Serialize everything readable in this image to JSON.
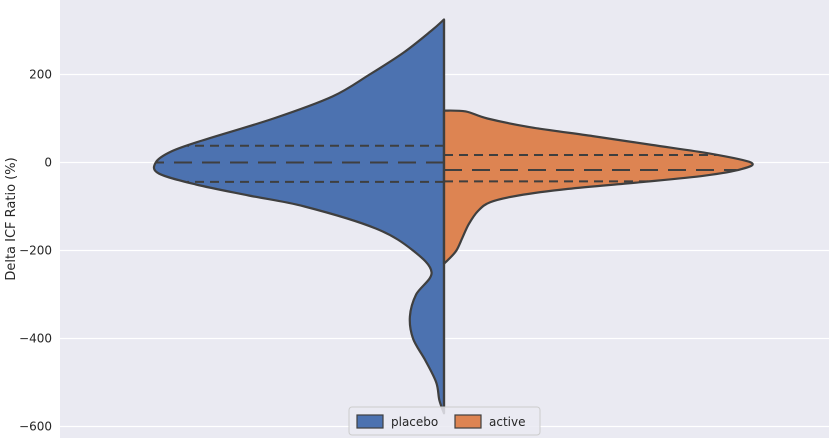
{
  "chart_data": {
    "type": "violin",
    "split": true,
    "title": "",
    "xlabel": "",
    "ylabel": "Delta ICF Ratio (%)",
    "ylim": [
      -610,
      325
    ],
    "yticks": [
      200,
      0,
      -200,
      -400,
      -600
    ],
    "ytick_labels": [
      "200",
      "0",
      "−200",
      "−400",
      "−600"
    ],
    "grid": true,
    "legend": {
      "placement": "bottom-center"
    },
    "colors": {
      "background": "#eaeaf2",
      "grid": "#ffffff",
      "outline": "#3f3f3f"
    },
    "series": [
      {
        "name": "placebo",
        "side": "left",
        "color": "#4c72b0",
        "quartiles": {
          "q1": -44,
          "median": 0,
          "q3": 38
        },
        "range": [
          -570,
          325
        ],
        "density": [
          [
            325,
            0.0
          ],
          [
            300,
            0.04
          ],
          [
            250,
            0.13
          ],
          [
            200,
            0.24
          ],
          [
            150,
            0.36
          ],
          [
            100,
            0.55
          ],
          [
            50,
            0.78
          ],
          [
            25,
            0.88
          ],
          [
            0,
            0.93
          ],
          [
            -25,
            0.92
          ],
          [
            -50,
            0.8
          ],
          [
            -75,
            0.63
          ],
          [
            -100,
            0.45
          ],
          [
            -150,
            0.22
          ],
          [
            -200,
            0.1
          ],
          [
            -250,
            0.04
          ],
          [
            -300,
            0.09
          ],
          [
            -350,
            0.11
          ],
          [
            -400,
            0.1
          ],
          [
            -450,
            0.06
          ],
          [
            -500,
            0.025
          ],
          [
            -540,
            0.015
          ],
          [
            -570,
            0.0
          ]
        ]
      },
      {
        "name": "active",
        "side": "right",
        "color": "#dd8452",
        "quartiles": {
          "q1": -43,
          "median": -17,
          "q3": 17
        },
        "range": [
          -230,
          118
        ],
        "density": [
          [
            118,
            0.0
          ],
          [
            116,
            0.07
          ],
          [
            100,
            0.14
          ],
          [
            80,
            0.28
          ],
          [
            60,
            0.48
          ],
          [
            40,
            0.67
          ],
          [
            20,
            0.86
          ],
          [
            0,
            0.99
          ],
          [
            -15,
            0.96
          ],
          [
            -30,
            0.84
          ],
          [
            -45,
            0.63
          ],
          [
            -60,
            0.4
          ],
          [
            -75,
            0.24
          ],
          [
            -90,
            0.15
          ],
          [
            -110,
            0.11
          ],
          [
            -140,
            0.08
          ],
          [
            -170,
            0.06
          ],
          [
            -200,
            0.04
          ],
          [
            -220,
            0.015
          ],
          [
            -230,
            0.0
          ]
        ]
      }
    ]
  }
}
